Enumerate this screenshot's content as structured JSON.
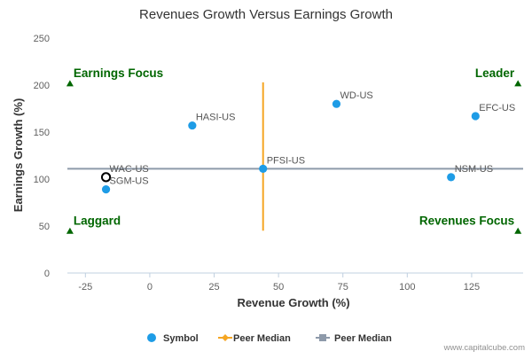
{
  "chart_data": {
    "type": "scatter",
    "title": "Revenues Growth Versus Earnings Growth",
    "xlabel": "Revenue Growth (%)",
    "ylabel": "Earnings Growth (%)",
    "xlim": [
      -32,
      145
    ],
    "ylim": [
      0,
      250
    ],
    "xticks": [
      "-25",
      "0",
      "25",
      "50",
      "75",
      "100",
      "125"
    ],
    "xtick_values": [
      -25,
      0,
      25,
      50,
      75,
      100,
      125
    ],
    "yticks": [
      "0",
      "50",
      "100",
      "150",
      "200",
      "250"
    ],
    "ytick_values": [
      0,
      50,
      100,
      150,
      200,
      250
    ],
    "grid": false,
    "points": [
      {
        "label": "WD-US",
        "x": 72.5,
        "y": 180,
        "highlight": false
      },
      {
        "label": "EFC-US",
        "x": 126.5,
        "y": 167,
        "highlight": false
      },
      {
        "label": "HASI-US",
        "x": 16.5,
        "y": 157,
        "highlight": false
      },
      {
        "label": "PFSI-US",
        "x": 44,
        "y": 111,
        "highlight": false
      },
      {
        "label": "NSM-US",
        "x": 117,
        "y": 102,
        "highlight": false
      },
      {
        "label": "WAC-US",
        "x": -17,
        "y": 102,
        "highlight": true
      },
      {
        "label": "SGM-US",
        "x": -17,
        "y": 89,
        "highlight": false
      }
    ],
    "peer_median_revenue": 44,
    "peer_median_revenue_yrange": [
      45,
      203
    ],
    "peer_median_earnings": 111,
    "quadrants": [
      {
        "label": "Earnings Focus",
        "corner": "top-left",
        "x": -31,
        "y": 202
      },
      {
        "label": "Leader",
        "corner": "top-right",
        "x": 143,
        "y": 202
      },
      {
        "label": "Laggard",
        "corner": "bottom-left",
        "x": -31,
        "y": 45
      },
      {
        "label": "Revenues Focus",
        "corner": "bottom-right",
        "x": 143,
        "y": 45
      }
    ],
    "legend": [
      {
        "label": "Symbol",
        "kind": "symbol"
      },
      {
        "label": "Peer Median",
        "kind": "revenue-median"
      },
      {
        "label": "Peer Median",
        "kind": "earnings-median"
      }
    ],
    "legend_position": "bottom-center",
    "credit": "www.capitalcube.com",
    "colors": {
      "point": "#1e9ce6",
      "revenue_median": "#f5a623",
      "earnings_median": "#8e9aaa",
      "quadrant": "#006600",
      "highlight_stroke": "#000000"
    }
  }
}
